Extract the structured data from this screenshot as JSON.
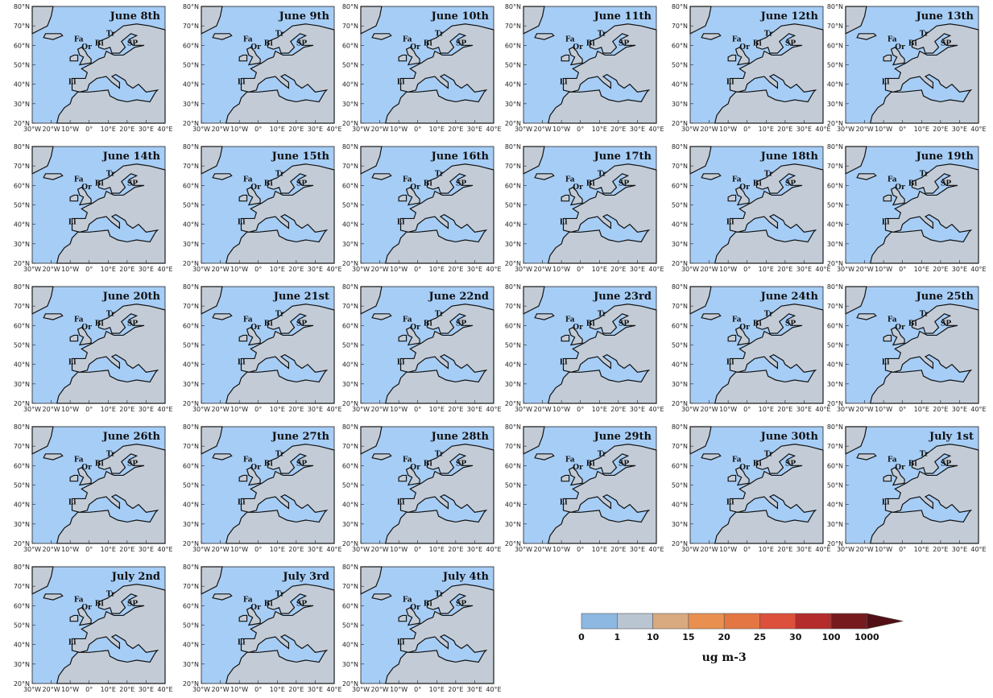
{
  "panels": [
    {
      "title": "June 8th"
    },
    {
      "title": "June 9th"
    },
    {
      "title": "June 10th"
    },
    {
      "title": "June 11th"
    },
    {
      "title": "June 12th"
    },
    {
      "title": "June 13th"
    },
    {
      "title": "June 14th"
    },
    {
      "title": "June 15th"
    },
    {
      "title": "June 16th"
    },
    {
      "title": "June 17th"
    },
    {
      "title": "June 18th"
    },
    {
      "title": "June 19th"
    },
    {
      "title": "June 20th"
    },
    {
      "title": "June 21st"
    },
    {
      "title": "June 22nd"
    },
    {
      "title": "June 23rd"
    },
    {
      "title": "June 24th"
    },
    {
      "title": "June 25th"
    },
    {
      "title": "June 26th"
    },
    {
      "title": "June 27th"
    },
    {
      "title": "June 28th"
    },
    {
      "title": "June 29th"
    },
    {
      "title": "June 30th"
    },
    {
      "title": "July 1st"
    },
    {
      "title": "July 2nd"
    },
    {
      "title": "July 3rd"
    },
    {
      "title": "July 4th"
    }
  ],
  "lat_ticks": [
    "80°N",
    "70°N",
    "60°N",
    "50°N",
    "40°N",
    "30°N",
    "20°N"
  ],
  "lon_ticks": [
    "30°W",
    "20°W",
    "10°W",
    "0°",
    "10°E",
    "20°E",
    "30°E",
    "40°E"
  ],
  "sites": [
    "Fa",
    "Tr",
    "Or",
    "Bi",
    "SP",
    "Li"
  ],
  "colorbar": {
    "labels": [
      0,
      1,
      10,
      15,
      20,
      25,
      30,
      100,
      1000
    ],
    "colors": [
      "#8cb8e2",
      "#b9c5d1",
      "#d9aa80",
      "#e99050",
      "#e47644",
      "#dc503c",
      "#b42c2c",
      "#761a1e",
      "#521014"
    ],
    "unit": "ug m-3"
  }
}
